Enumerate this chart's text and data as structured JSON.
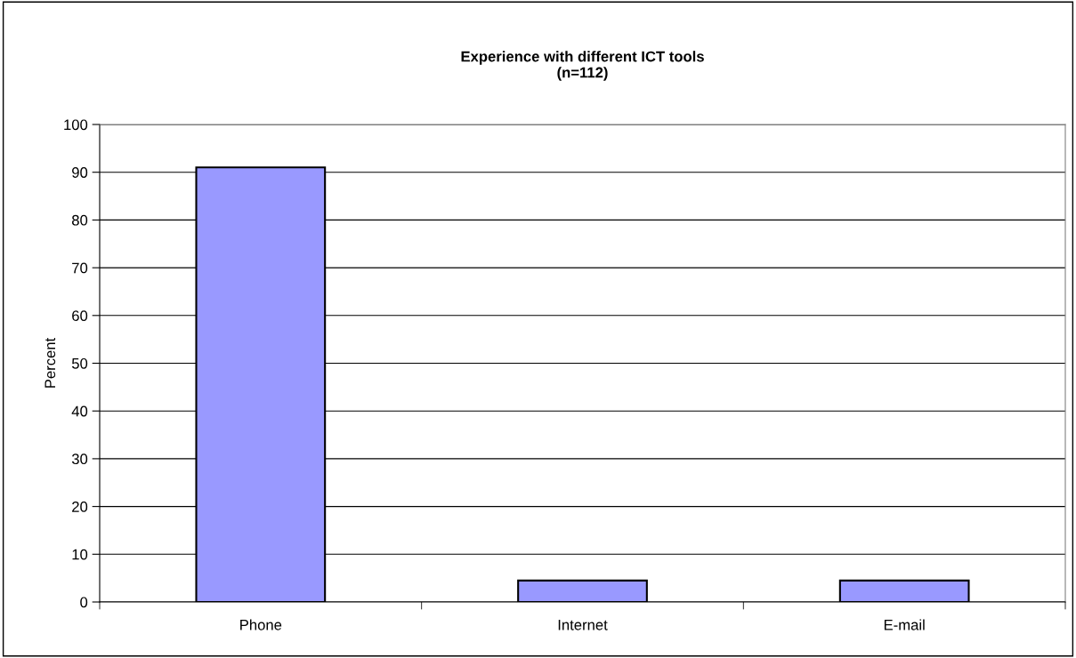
{
  "chart_data": {
    "type": "bar",
    "title": "Experience with different ICT tools\n(n=112)",
    "ylabel": "Percent",
    "categories": [
      "Phone",
      "Internet",
      "E-mail"
    ],
    "values": [
      91,
      4.5,
      4.5
    ],
    "color": "#9999ff",
    "ylim": [
      0,
      100
    ],
    "yticks": [
      0,
      10,
      20,
      30,
      40,
      50,
      60,
      70,
      80,
      90,
      100
    ],
    "grid": "y",
    "legend": false
  }
}
